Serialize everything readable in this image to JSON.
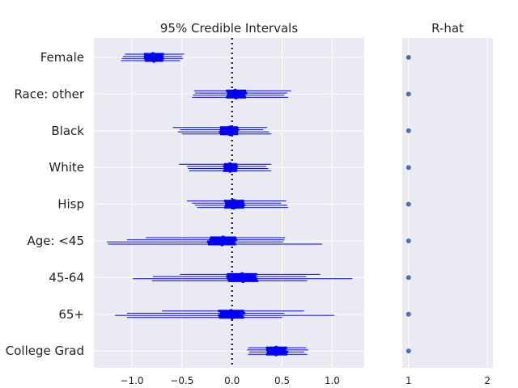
{
  "chart_data": {
    "type": "forest",
    "panels": [
      {
        "title": "95% Credible Intervals",
        "xlim": [
          -1.38,
          1.32
        ],
        "xticks": [
          -1.0,
          -0.5,
          0.0,
          0.5,
          1.0
        ],
        "xtick_labels": [
          "−1.0",
          "−0.5",
          "0.0",
          "0.5",
          "1.0"
        ],
        "reference_line": 0,
        "chains": 4,
        "rows": [
          {
            "label": "Female",
            "intervals": [
              {
                "mean": -0.79,
                "lo": -1.07,
                "hi": -0.48,
                "q1": -0.88,
                "q3": -0.68
              },
              {
                "mean": -0.79,
                "lo": -1.09,
                "hi": -0.5,
                "q1": -0.88,
                "q3": -0.69
              },
              {
                "mean": -0.78,
                "lo": -1.1,
                "hi": -0.49,
                "q1": -0.88,
                "q3": -0.68
              },
              {
                "mean": -0.78,
                "lo": -1.11,
                "hi": -0.52,
                "q1": -0.87,
                "q3": -0.69
              }
            ]
          },
          {
            "label": "Race: other",
            "intervals": [
              {
                "mean": 0.03,
                "lo": -0.38,
                "hi": 0.59,
                "q1": -0.06,
                "q3": 0.14
              },
              {
                "mean": 0.05,
                "lo": -0.37,
                "hi": 0.55,
                "q1": -0.05,
                "q3": 0.15
              },
              {
                "mean": 0.04,
                "lo": -0.39,
                "hi": 0.52,
                "q1": -0.05,
                "q3": 0.13
              },
              {
                "mean": 0.04,
                "lo": -0.4,
                "hi": 0.56,
                "q1": -0.06,
                "q3": 0.14
              }
            ]
          },
          {
            "label": "Black",
            "intervals": [
              {
                "mean": -0.02,
                "lo": -0.59,
                "hi": 0.35,
                "q1": -0.12,
                "q3": 0.06
              },
              {
                "mean": -0.01,
                "lo": -0.52,
                "hi": 0.31,
                "q1": -0.12,
                "q3": 0.07
              },
              {
                "mean": -0.02,
                "lo": -0.54,
                "hi": 0.37,
                "q1": -0.13,
                "q3": 0.06
              },
              {
                "mean": -0.02,
                "lo": -0.5,
                "hi": 0.39,
                "q1": -0.12,
                "q3": 0.06
              }
            ]
          },
          {
            "label": "White",
            "intervals": [
              {
                "mean": -0.02,
                "lo": -0.53,
                "hi": 0.39,
                "q1": -0.08,
                "q3": 0.05
              },
              {
                "mean": -0.01,
                "lo": -0.45,
                "hi": 0.34,
                "q1": -0.09,
                "q3": 0.06
              },
              {
                "mean": -0.02,
                "lo": -0.44,
                "hi": 0.36,
                "q1": -0.08,
                "q3": 0.05
              },
              {
                "mean": -0.02,
                "lo": -0.43,
                "hi": 0.39,
                "q1": -0.09,
                "q3": 0.05
              }
            ]
          },
          {
            "label": "Hisp",
            "intervals": [
              {
                "mean": 0.02,
                "lo": -0.45,
                "hi": 0.54,
                "q1": -0.08,
                "q3": 0.12
              },
              {
                "mean": 0.02,
                "lo": -0.4,
                "hi": 0.49,
                "q1": -0.07,
                "q3": 0.12
              },
              {
                "mean": 0.03,
                "lo": -0.37,
                "hi": 0.55,
                "q1": -0.07,
                "q3": 0.13
              },
              {
                "mean": 0.02,
                "lo": -0.35,
                "hi": 0.56,
                "q1": -0.08,
                "q3": 0.12
              }
            ]
          },
          {
            "label": "Age: <45",
            "intervals": [
              {
                "mean": -0.09,
                "lo": -0.86,
                "hi": 0.53,
                "q1": -0.22,
                "q3": 0.04
              },
              {
                "mean": -0.08,
                "lo": -1.05,
                "hi": 0.52,
                "q1": -0.23,
                "q3": 0.05
              },
              {
                "mean": -0.11,
                "lo": -1.25,
                "hi": 0.51,
                "q1": -0.25,
                "q3": 0.03
              },
              {
                "mean": -0.1,
                "lo": -1.24,
                "hi": 0.9,
                "q1": -0.24,
                "q3": 0.04
              }
            ]
          },
          {
            "label": "45-64",
            "intervals": [
              {
                "mean": 0.1,
                "lo": -0.52,
                "hi": 0.88,
                "q1": -0.05,
                "q3": 0.25
              },
              {
                "mean": 0.09,
                "lo": -0.79,
                "hi": 0.74,
                "q1": -0.06,
                "q3": 0.24
              },
              {
                "mean": 0.1,
                "lo": -0.99,
                "hi": 1.2,
                "q1": -0.05,
                "q3": 0.25
              },
              {
                "mean": 0.11,
                "lo": -0.8,
                "hi": 0.75,
                "q1": -0.04,
                "q3": 0.26
              }
            ]
          },
          {
            "label": "65+",
            "intervals": [
              {
                "mean": -0.01,
                "lo": -0.7,
                "hi": 0.72,
                "q1": -0.14,
                "q3": 0.12
              },
              {
                "mean": 0.01,
                "lo": -1.05,
                "hi": 0.52,
                "q1": -0.12,
                "q3": 0.13
              },
              {
                "mean": -0.01,
                "lo": -1.17,
                "hi": 1.02,
                "q1": -0.14,
                "q3": 0.11
              },
              {
                "mean": 0.0,
                "lo": -1.05,
                "hi": 0.5,
                "q1": -0.13,
                "q3": 0.12
              }
            ]
          },
          {
            "label": "College Grad",
            "intervals": [
              {
                "mean": 0.44,
                "lo": 0.16,
                "hi": 0.74,
                "q1": 0.34,
                "q3": 0.55
              },
              {
                "mean": 0.44,
                "lo": 0.15,
                "hi": 0.76,
                "q1": 0.34,
                "q3": 0.54
              },
              {
                "mean": 0.45,
                "lo": 0.17,
                "hi": 0.72,
                "q1": 0.35,
                "q3": 0.56
              },
              {
                "mean": 0.44,
                "lo": 0.16,
                "hi": 0.75,
                "q1": 0.34,
                "q3": 0.55
              }
            ]
          }
        ]
      },
      {
        "title": "R-hat",
        "xlim": [
          0.92,
          2.07
        ],
        "xticks": [
          1,
          2
        ],
        "xtick_labels": [
          "1",
          "2"
        ],
        "values": [
          1.0,
          1.0,
          1.0,
          1.0,
          1.0,
          1.0,
          1.0,
          1.0,
          1.0
        ]
      }
    ],
    "grid": true,
    "colors": {
      "interval": "#0000ff",
      "rhat_point": "#4c72b0",
      "panel_bg": "#eaeaf2",
      "grid": "#ffffff",
      "reference_line": "#000000"
    }
  }
}
